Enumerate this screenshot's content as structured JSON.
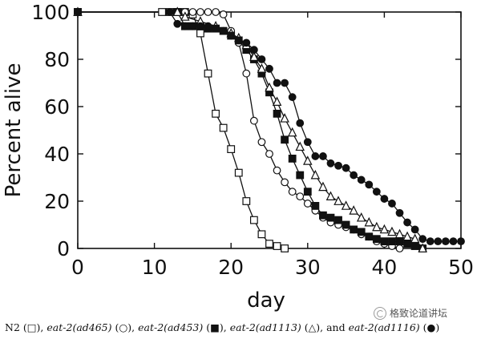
{
  "chart_data": {
    "type": "line",
    "xlabel": "day",
    "ylabel": "Percent alive",
    "xlim": [
      0,
      50
    ],
    "ylim": [
      0,
      100
    ],
    "xticks": [
      0,
      10,
      20,
      30,
      40,
      50
    ],
    "yticks": [
      0,
      20,
      40,
      60,
      80,
      100
    ],
    "grid": false,
    "legend": "caption-below",
    "series": [
      {
        "name": "N2",
        "marker": "open-square",
        "points": [
          [
            0,
            100
          ],
          [
            11,
            100
          ],
          [
            12,
            100
          ],
          [
            13,
            100
          ],
          [
            14,
            100
          ],
          [
            15,
            99
          ],
          [
            16,
            91
          ],
          [
            17,
            74
          ],
          [
            18,
            57
          ],
          [
            19,
            51
          ],
          [
            20,
            42
          ],
          [
            21,
            32
          ],
          [
            22,
            20
          ],
          [
            23,
            12
          ],
          [
            24,
            6
          ],
          [
            25,
            2
          ],
          [
            26,
            1
          ],
          [
            27,
            0
          ]
        ]
      },
      {
        "name": "eat-2(ad465)",
        "marker": "open-circle",
        "points": [
          [
            0,
            100
          ],
          [
            13,
            100
          ],
          [
            14,
            100
          ],
          [
            15,
            100
          ],
          [
            16,
            100
          ],
          [
            17,
            100
          ],
          [
            18,
            100
          ],
          [
            19,
            99
          ],
          [
            20,
            92
          ],
          [
            21,
            87
          ],
          [
            22,
            74
          ],
          [
            23,
            54
          ],
          [
            24,
            45
          ],
          [
            25,
            40
          ],
          [
            26,
            33
          ],
          [
            27,
            28
          ],
          [
            28,
            24
          ],
          [
            29,
            22
          ],
          [
            30,
            19
          ],
          [
            31,
            16
          ],
          [
            32,
            13
          ],
          [
            33,
            11
          ],
          [
            34,
            10
          ],
          [
            35,
            9
          ],
          [
            36,
            8
          ],
          [
            37,
            6
          ],
          [
            38,
            5
          ],
          [
            39,
            3
          ],
          [
            40,
            2
          ],
          [
            41,
            1
          ],
          [
            42,
            0
          ]
        ]
      },
      {
        "name": "eat-2(ad453)",
        "marker": "filled-square",
        "points": [
          [
            0,
            100
          ],
          [
            13,
            100
          ],
          [
            14,
            94
          ],
          [
            15,
            94
          ],
          [
            16,
            94
          ],
          [
            17,
            93
          ],
          [
            18,
            93
          ],
          [
            19,
            92
          ],
          [
            20,
            90
          ],
          [
            21,
            88
          ],
          [
            22,
            84
          ],
          [
            23,
            80
          ],
          [
            24,
            74
          ],
          [
            25,
            66
          ],
          [
            26,
            57
          ],
          [
            27,
            46
          ],
          [
            28,
            38
          ],
          [
            29,
            31
          ],
          [
            30,
            24
          ],
          [
            31,
            18
          ],
          [
            32,
            14
          ],
          [
            33,
            13
          ],
          [
            34,
            12
          ],
          [
            35,
            10
          ],
          [
            36,
            8
          ],
          [
            37,
            7
          ],
          [
            38,
            5
          ],
          [
            39,
            4
          ],
          [
            40,
            3
          ],
          [
            41,
            3
          ],
          [
            42,
            3
          ],
          [
            43,
            2
          ],
          [
            44,
            1
          ],
          [
            45,
            0
          ]
        ]
      },
      {
        "name": "eat-2(ad1113)",
        "marker": "open-triangle",
        "points": [
          [
            0,
            100
          ],
          [
            13,
            100
          ],
          [
            14,
            98
          ],
          [
            16,
            96
          ],
          [
            18,
            94
          ],
          [
            20,
            91
          ],
          [
            21,
            89
          ],
          [
            22,
            86
          ],
          [
            23,
            81
          ],
          [
            24,
            76
          ],
          [
            25,
            68
          ],
          [
            26,
            62
          ],
          [
            27,
            55
          ],
          [
            28,
            49
          ],
          [
            29,
            43
          ],
          [
            30,
            37
          ],
          [
            31,
            31
          ],
          [
            32,
            26
          ],
          [
            33,
            22
          ],
          [
            34,
            20
          ],
          [
            35,
            18
          ],
          [
            36,
            16
          ],
          [
            37,
            13
          ],
          [
            38,
            11
          ],
          [
            39,
            9
          ],
          [
            40,
            8
          ],
          [
            41,
            7
          ],
          [
            42,
            6
          ],
          [
            43,
            5
          ],
          [
            44,
            4
          ],
          [
            45,
            0
          ]
        ]
      },
      {
        "name": "eat-2(ad1116)",
        "marker": "filled-circle",
        "points": [
          [
            0,
            100
          ],
          [
            12,
            100
          ],
          [
            13,
            95
          ],
          [
            14,
            94
          ],
          [
            15,
            94
          ],
          [
            16,
            94
          ],
          [
            17,
            94
          ],
          [
            18,
            93
          ],
          [
            19,
            92
          ],
          [
            20,
            90
          ],
          [
            21,
            88
          ],
          [
            22,
            87
          ],
          [
            23,
            84
          ],
          [
            24,
            80
          ],
          [
            25,
            76
          ],
          [
            26,
            70
          ],
          [
            27,
            70
          ],
          [
            28,
            64
          ],
          [
            29,
            53
          ],
          [
            30,
            45
          ],
          [
            31,
            39
          ],
          [
            32,
            39
          ],
          [
            33,
            36
          ],
          [
            34,
            35
          ],
          [
            35,
            34
          ],
          [
            36,
            31
          ],
          [
            37,
            29
          ],
          [
            38,
            27
          ],
          [
            39,
            24
          ],
          [
            40,
            21
          ],
          [
            41,
            19
          ],
          [
            42,
            15
          ],
          [
            43,
            11
          ],
          [
            44,
            8
          ],
          [
            45,
            4
          ],
          [
            46,
            3
          ],
          [
            47,
            3
          ],
          [
            48,
            3
          ],
          [
            49,
            3
          ],
          [
            50,
            3
          ]
        ]
      }
    ]
  },
  "caption": {
    "n2": "N2 (□),",
    "ad465": "eat-2(ad465)",
    "ad465_sym": " (○),",
    "ad453": "eat-2(ad453)",
    "ad453_sym": " (■),",
    "ad1113": "eat-2(ad1113)",
    "ad1113_sym": " (△), and",
    "ad1116": "eat-2(ad1116)",
    "ad1116_sym": " (●)"
  },
  "watermark": {
    "text": "格致论道讲坛"
  },
  "colors": {
    "ink": "#111111",
    "paper": "#ffffff"
  }
}
